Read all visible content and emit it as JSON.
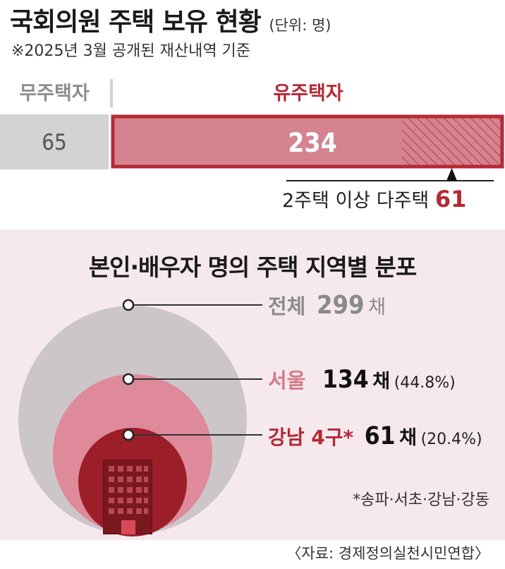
{
  "header": {
    "title": "국회의원 주택 보유 현황",
    "unit": "(단위: 명)",
    "subtitle": "※2025년 3월 공개된 재산내역 기준"
  },
  "ownership": {
    "non_owner_label": "무주택자",
    "owner_label": "유주택자",
    "non_owner_value": "65",
    "owner_value": "234",
    "multi_label": "2주택 이상 다주택",
    "multi_value": "61"
  },
  "distribution": {
    "title": "본인·배우자 명의 주택 지역별 분포",
    "total": {
      "label": "전체",
      "value": "299",
      "unit": "채",
      "pct": ""
    },
    "seoul": {
      "label": "서울",
      "value": "134",
      "unit": "채",
      "pct": "(44.8%)"
    },
    "gangnam": {
      "label": "강남 4구*",
      "value": "61",
      "unit": "채",
      "pct": "(20.4%)"
    }
  },
  "footnote": "*송파·서초·강남·강동",
  "source": "〈자료: 경제정의실천시민연합〉",
  "colors": {
    "gray_bar": "#d3d3d3",
    "pink_bar": "#d4838f",
    "accent_red": "#b42a35",
    "outer_circle": "#cdc6c8",
    "mid_circle": "#de8a9a",
    "inner_circle": "#9c1e28"
  },
  "chart_data": [
    {
      "type": "bar",
      "categories": [
        "무주택자",
        "유주택자"
      ],
      "values": [
        65,
        234
      ],
      "annotation": {
        "label": "2주택 이상 다주택",
        "value": 61
      }
    },
    {
      "type": "area",
      "title": "본인·배우자 명의 주택 지역별 분포",
      "categories": [
        "전체",
        "서울",
        "강남 4구*"
      ],
      "values": [
        299,
        134,
        61
      ],
      "percent": [
        null,
        44.8,
        20.4
      ]
    }
  ]
}
